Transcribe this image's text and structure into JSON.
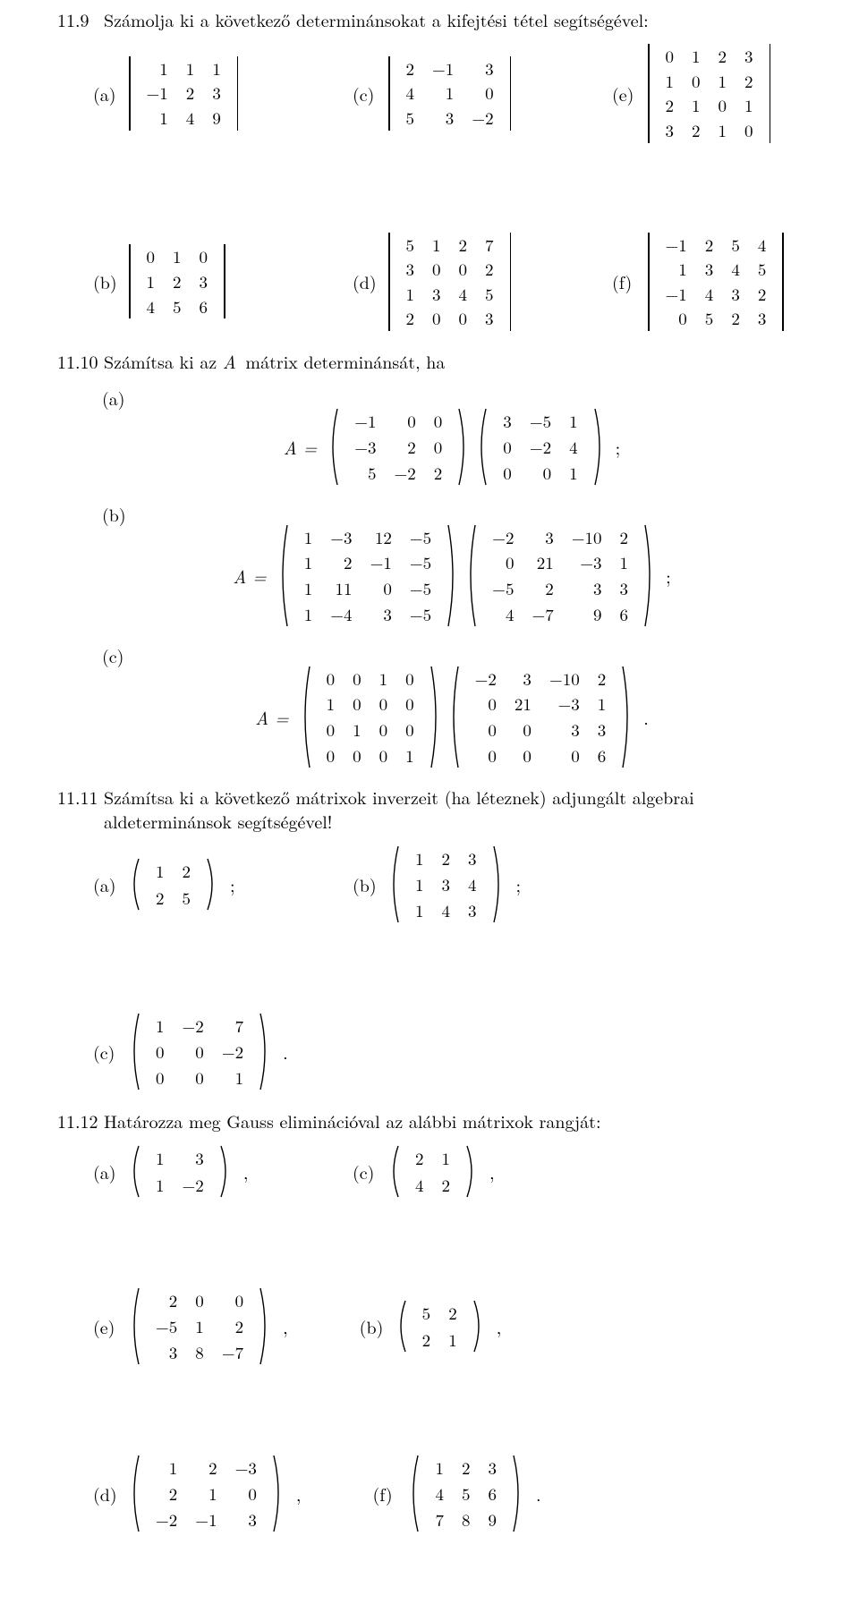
{
  "problems": {
    "p119": {
      "number": "11.9",
      "text": "Számolja ki a következő determinánsokat a kifejtési tétel segítségével:",
      "items": {
        "a": {
          "label": "(a)",
          "rows": [
            [
              "1",
              "1",
              "1"
            ],
            [
              "−1",
              "2",
              "3"
            ],
            [
              "1",
              "4",
              "9"
            ]
          ]
        },
        "b": {
          "label": "(b)",
          "rows": [
            [
              "0",
              "1",
              "0"
            ],
            [
              "1",
              "2",
              "3"
            ],
            [
              "4",
              "5",
              "6"
            ]
          ]
        },
        "c": {
          "label": "(c)",
          "rows": [
            [
              "2",
              "−1",
              "3"
            ],
            [
              "4",
              "1",
              "0"
            ],
            [
              "5",
              "3",
              "−2"
            ]
          ]
        },
        "d": {
          "label": "(d)",
          "rows": [
            [
              "5",
              "1",
              "2",
              "7"
            ],
            [
              "3",
              "0",
              "0",
              "2"
            ],
            [
              "1",
              "3",
              "4",
              "5"
            ],
            [
              "2",
              "0",
              "0",
              "3"
            ]
          ]
        },
        "e": {
          "label": "(e)",
          "rows": [
            [
              "0",
              "1",
              "2",
              "3"
            ],
            [
              "1",
              "0",
              "1",
              "2"
            ],
            [
              "2",
              "1",
              "0",
              "1"
            ],
            [
              "3",
              "2",
              "1",
              "0"
            ]
          ]
        },
        "f": {
          "label": "(f)",
          "rows": [
            [
              "−1",
              "2",
              "5",
              "4"
            ],
            [
              "1",
              "3",
              "4",
              "5"
            ],
            [
              "−1",
              "4",
              "3",
              "2"
            ],
            [
              "0",
              "5",
              "2",
              "3"
            ]
          ]
        }
      }
    },
    "p1110": {
      "number": "11.10",
      "text_prefix": "Számítsa ki az ",
      "text_mid": "A",
      "text_suffix": " mátrix determinánsát, ha",
      "parts": {
        "a": {
          "label": "(a)",
          "lhs": "A =",
          "m1": [
            [
              "−1",
              "0",
              "0"
            ],
            [
              "−3",
              "2",
              "0"
            ],
            [
              "5",
              "−2",
              "2"
            ]
          ],
          "m2": [
            [
              "3",
              "−5",
              "1"
            ],
            [
              "0",
              "−2",
              "4"
            ],
            [
              "0",
              "0",
              "1"
            ]
          ],
          "tail": ";"
        },
        "b": {
          "label": "(b)",
          "lhs": "A =",
          "m1": [
            [
              "1",
              "−3",
              "12",
              "−5"
            ],
            [
              "1",
              "2",
              "−1",
              "−5"
            ],
            [
              "1",
              "11",
              "0",
              "−5"
            ],
            [
              "1",
              "−4",
              "3",
              "−5"
            ]
          ],
          "m2": [
            [
              "−2",
              "3",
              "−10",
              "2"
            ],
            [
              "0",
              "21",
              "−3",
              "1"
            ],
            [
              "−5",
              "2",
              "3",
              "3"
            ],
            [
              "4",
              "−7",
              "9",
              "6"
            ]
          ],
          "tail": ";"
        },
        "c": {
          "label": "(c)",
          "lhs": "A =",
          "m1": [
            [
              "0",
              "0",
              "1",
              "0"
            ],
            [
              "1",
              "0",
              "0",
              "0"
            ],
            [
              "0",
              "1",
              "0",
              "0"
            ],
            [
              "0",
              "0",
              "0",
              "1"
            ]
          ],
          "m2": [
            [
              "−2",
              "3",
              "−10",
              "2"
            ],
            [
              "0",
              "21",
              "−3",
              "1"
            ],
            [
              "0",
              "0",
              "3",
              "3"
            ],
            [
              "0",
              "0",
              "0",
              "6"
            ]
          ],
          "tail": "."
        }
      }
    },
    "p1111": {
      "number": "11.11",
      "text": "Számítsa ki a következő mátrixok inverzeit (ha léteznek) adjungált algebrai aldeterminánsok segítségével!",
      "items": {
        "a": {
          "label": "(a)",
          "rows": [
            [
              "1",
              "2"
            ],
            [
              "2",
              "5"
            ]
          ],
          "tail": ";"
        },
        "b": {
          "label": "(b)",
          "rows": [
            [
              "1",
              "2",
              "3"
            ],
            [
              "1",
              "3",
              "4"
            ],
            [
              "1",
              "4",
              "3"
            ]
          ],
          "tail": ";"
        },
        "c": {
          "label": "(c)",
          "rows": [
            [
              "1",
              "−2",
              "7"
            ],
            [
              "0",
              "0",
              "−2"
            ],
            [
              "0",
              "0",
              "1"
            ]
          ],
          "tail": "."
        }
      }
    },
    "p1112": {
      "number": "11.12",
      "text": "Határozza meg Gauss eliminációval az alábbi mátrixok rangját:",
      "items": {
        "a": {
          "label": "(a)",
          "rows": [
            [
              "1",
              "3"
            ],
            [
              "1",
              "−2"
            ]
          ],
          "tail": ","
        },
        "b": {
          "label": "(b)",
          "rows": [
            [
              "5",
              "2"
            ],
            [
              "2",
              "1"
            ]
          ],
          "tail": ","
        },
        "c": {
          "label": "(c)",
          "rows": [
            [
              "2",
              "1"
            ],
            [
              "4",
              "2"
            ]
          ],
          "tail": ","
        },
        "d": {
          "label": "(d)",
          "rows": [
            [
              "1",
              "2",
              "−3"
            ],
            [
              "2",
              "1",
              "0"
            ],
            [
              "−2",
              "−1",
              "3"
            ]
          ],
          "tail": ","
        },
        "e": {
          "label": "(e)",
          "rows": [
            [
              "2",
              "0",
              "0"
            ],
            [
              "−5",
              "1",
              "2"
            ],
            [
              "3",
              "8",
              "−7"
            ]
          ],
          "tail": ","
        },
        "f": {
          "label": "(f)",
          "rows": [
            [
              "1",
              "2",
              "3"
            ],
            [
              "4",
              "5",
              "6"
            ],
            [
              "7",
              "8",
              "9"
            ]
          ],
          "tail": "."
        }
      }
    }
  }
}
